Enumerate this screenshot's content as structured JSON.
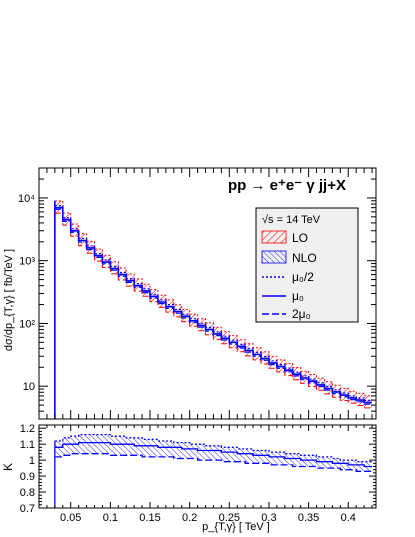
{
  "chart_data": {
    "type": "line",
    "process": "pp  → e⁺e⁻ γ jj+X",
    "legend": {
      "header": "√s = 14 TeV",
      "placement": "top-right",
      "entries": [
        {
          "key": "lo",
          "label": "LO",
          "style": "red hatched band",
          "color": "#ff0000"
        },
        {
          "key": "nlo",
          "label": "NLO",
          "style": "blue hatched band",
          "color": "#0000ff"
        },
        {
          "key": "half",
          "label": "μ₀/2",
          "style": "dotted line",
          "color": "#0000ff"
        },
        {
          "key": "mu0",
          "label": "μ₀",
          "style": "solid line",
          "color": "#0000ff"
        },
        {
          "key": "twice",
          "label": "2μ₀",
          "style": "dashed line",
          "color": "#0000ff"
        }
      ]
    },
    "xlabel": "p_{T,γ} [ TeV ]",
    "xlim": [
      0.01,
      0.435
    ],
    "x_ticks": [
      "0.05",
      "0.1",
      "0.15",
      "0.2",
      "0.25",
      "0.3",
      "0.35",
      "0.4"
    ],
    "upper": {
      "ylabel": "dσ/dp_{T,γ}  [ fb/TeV ]",
      "yscale": "log",
      "ylim": [
        3,
        30000
      ],
      "y_ticks": [
        "10",
        "10²",
        "10³",
        "10⁴"
      ],
      "bins": [
        0.03,
        0.04,
        0.05,
        0.06,
        0.07,
        0.08,
        0.09,
        0.1,
        0.11,
        0.12,
        0.13,
        0.14,
        0.15,
        0.16,
        0.17,
        0.18,
        0.19,
        0.2,
        0.21,
        0.22,
        0.23,
        0.24,
        0.25,
        0.26,
        0.27,
        0.28,
        0.29,
        0.3,
        0.31,
        0.32,
        0.33,
        0.34,
        0.35,
        0.36,
        0.37,
        0.38,
        0.39,
        0.4,
        0.41,
        0.42,
        0.43
      ],
      "nlo_central": [
        7000,
        4500,
        3000,
        2100,
        1600,
        1200,
        950,
        750,
        600,
        480,
        400,
        330,
        270,
        220,
        185,
        155,
        130,
        110,
        93,
        80,
        68,
        58,
        50,
        43,
        37,
        32,
        27.5,
        23.5,
        20.5,
        18,
        15.5,
        13.5,
        12,
        10.5,
        9.2,
        8.1,
        7.2,
        6.5,
        6.0,
        5.5
      ],
      "lo_upper_factor": 1.28,
      "lo_lower_factor": 0.82,
      "nlo_upper_factor": 1.08,
      "nlo_lower_factor": 0.94
    },
    "lower": {
      "ylabel": "K",
      "ylim": [
        0.7,
        1.22
      ],
      "y_ticks": [
        "0.7",
        "0.8",
        "0.9",
        "1",
        "1.1",
        "1.2"
      ],
      "bins": [
        0.03,
        0.04,
        0.05,
        0.06,
        0.07,
        0.08,
        0.09,
        0.1,
        0.11,
        0.12,
        0.13,
        0.14,
        0.15,
        0.16,
        0.17,
        0.18,
        0.19,
        0.2,
        0.21,
        0.22,
        0.23,
        0.24,
        0.25,
        0.26,
        0.27,
        0.28,
        0.29,
        0.3,
        0.31,
        0.32,
        0.33,
        0.34,
        0.35,
        0.36,
        0.37,
        0.38,
        0.39,
        0.4,
        0.41,
        0.42,
        0.43
      ],
      "k_half": [
        1.12,
        1.14,
        1.15,
        1.16,
        1.16,
        1.16,
        1.16,
        1.15,
        1.15,
        1.14,
        1.14,
        1.13,
        1.13,
        1.12,
        1.12,
        1.11,
        1.11,
        1.1,
        1.1,
        1.09,
        1.09,
        1.08,
        1.08,
        1.07,
        1.07,
        1.06,
        1.06,
        1.05,
        1.05,
        1.04,
        1.04,
        1.03,
        1.03,
        1.02,
        1.02,
        1.01,
        1.0,
        1.0,
        0.99,
        0.99
      ],
      "k_mu0": [
        1.08,
        1.1,
        1.1,
        1.11,
        1.11,
        1.11,
        1.11,
        1.1,
        1.1,
        1.1,
        1.09,
        1.09,
        1.09,
        1.08,
        1.08,
        1.08,
        1.07,
        1.07,
        1.06,
        1.06,
        1.06,
        1.05,
        1.05,
        1.04,
        1.04,
        1.03,
        1.03,
        1.02,
        1.02,
        1.01,
        1.01,
        1.0,
        1.0,
        0.99,
        0.99,
        0.98,
        0.98,
        0.97,
        0.97,
        0.96
      ],
      "k_twice": [
        1.02,
        1.03,
        1.04,
        1.04,
        1.04,
        1.04,
        1.04,
        1.03,
        1.03,
        1.03,
        1.03,
        1.02,
        1.02,
        1.02,
        1.02,
        1.01,
        1.01,
        1.01,
        1.0,
        1.0,
        1.0,
        0.99,
        0.99,
        0.99,
        0.98,
        0.98,
        0.98,
        0.97,
        0.97,
        0.97,
        0.96,
        0.96,
        0.96,
        0.95,
        0.95,
        0.95,
        0.94,
        0.94,
        0.93,
        0.93
      ]
    }
  }
}
